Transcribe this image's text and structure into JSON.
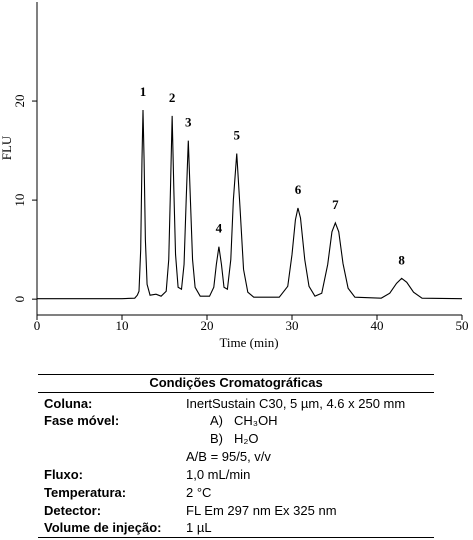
{
  "chart_data": {
    "type": "line",
    "x_label": "Time (min)",
    "y_label": "FLU",
    "x": [
      0,
      5,
      10,
      11.5,
      11.8,
      12.0,
      12.2,
      12.35,
      12.47,
      12.6,
      12.75,
      12.95,
      13.3,
      14.0,
      14.6,
      15.2,
      15.5,
      15.7,
      15.9,
      16.1,
      16.3,
      16.6,
      17.0,
      17.3,
      17.55,
      17.8,
      18.05,
      18.3,
      18.6,
      19.2,
      20.3,
      20.8,
      21.1,
      21.4,
      21.7,
      22.0,
      22.4,
      22.8,
      23.1,
      23.5,
      23.9,
      24.3,
      24.8,
      25.5,
      28.5,
      29.5,
      30.0,
      30.4,
      30.7,
      31.0,
      31.5,
      32.0,
      32.7,
      33.5,
      34.2,
      34.7,
      35.1,
      35.5,
      36.0,
      36.6,
      37.4,
      40.5,
      41.5,
      42.3,
      42.9,
      43.5,
      44.3,
      45.3,
      50
    ],
    "series": [
      {
        "color": "#000000",
        "values": [
          0.05,
          0.05,
          0.05,
          0.1,
          0.4,
          0.8,
          5,
          14,
          19.1,
          14,
          6,
          1.5,
          0.4,
          0.5,
          0.3,
          0.8,
          4,
          11,
          18.5,
          11,
          4.5,
          1.2,
          1.0,
          3.5,
          10,
          16.0,
          10,
          4,
          1.2,
          0.3,
          0.3,
          1.2,
          3.5,
          5.3,
          3.5,
          1.2,
          1.0,
          4,
          10,
          14.7,
          9,
          3,
          0.7,
          0.2,
          0.2,
          1.3,
          4.5,
          8,
          9.2,
          8.2,
          4,
          1.3,
          0.3,
          0.6,
          3.5,
          6.8,
          7.7,
          6.8,
          3.6,
          1.1,
          0.2,
          0.1,
          0.6,
          1.6,
          2.1,
          1.7,
          0.7,
          0.1,
          0.05
        ]
      }
    ],
    "annotations": [
      {
        "text": "1",
        "x": 12.47,
        "y": 19.1
      },
      {
        "text": "2",
        "x": 15.9,
        "y": 18.5
      },
      {
        "text": "3",
        "x": 17.8,
        "y": 16.0
      },
      {
        "text": "4",
        "x": 21.4,
        "y": 5.3
      },
      {
        "text": "5",
        "x": 23.5,
        "y": 14.7
      },
      {
        "text": "6",
        "x": 30.7,
        "y": 9.2
      },
      {
        "text": "7",
        "x": 35.1,
        "y": 7.7
      },
      {
        "text": "8",
        "x": 42.9,
        "y": 2.1
      }
    ],
    "xlim": [
      0,
      50
    ],
    "xticks": [
      0,
      10,
      20,
      30,
      40,
      50
    ],
    "ylim": [
      -1.6,
      30
    ],
    "yticks": [
      0,
      10,
      20
    ]
  },
  "table": {
    "title": "Condições Cromatográficas",
    "column": {
      "label": "Coluna:",
      "value": "InertSustain C30, 5 µm, 4.6 x 250 mm"
    },
    "mobile_phase": {
      "label": "Fase móvel:",
      "a_key": "A)",
      "a": "CH₃OH",
      "b_key": "B)",
      "b": "H₂O",
      "ratio": "A/B = 95/5, v/v"
    },
    "flow": {
      "label": "Fluxo:",
      "value": "1,0 mL/min"
    },
    "temperature": {
      "label": "Temperatura:",
      "value": "2 °C"
    },
    "detector": {
      "label": "Detector:",
      "value": "FL Em 297 nm Ex 325 nm"
    },
    "volume": {
      "label": "Volume de injeção:",
      "value": "1 µL"
    }
  }
}
